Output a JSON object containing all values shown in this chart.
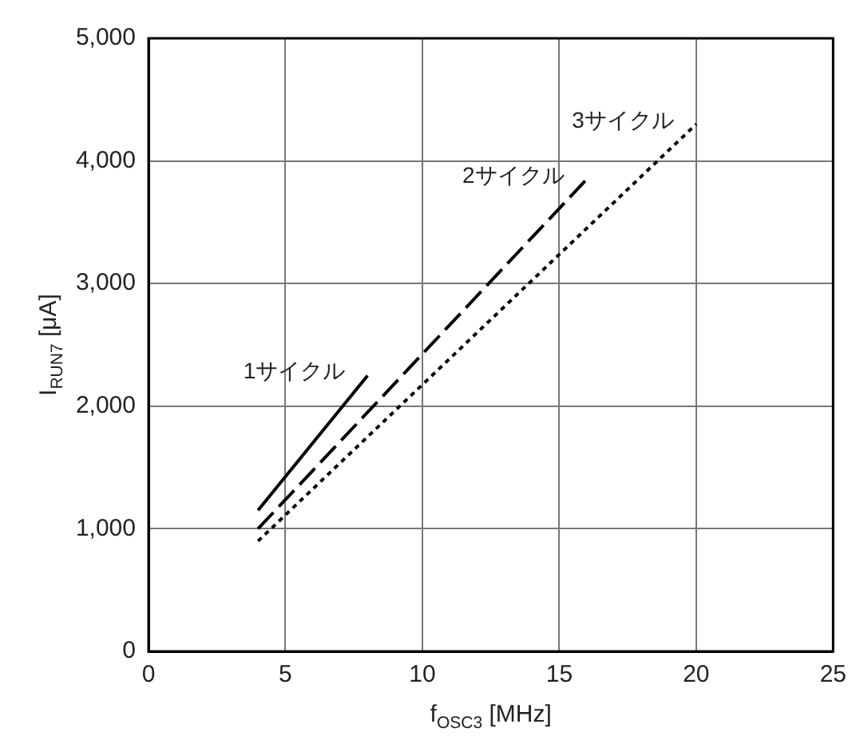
{
  "chart_data": {
    "type": "line",
    "xlabel": "f$_{OSC3}$ [MHz]",
    "ylabel": "I$_{RUN7}$ [μA]",
    "xlim": [
      0,
      25
    ],
    "xticks": [
      0,
      5,
      10,
      15,
      20,
      25
    ],
    "ylim": [
      0,
      5000
    ],
    "yticks": [
      0,
      {
        "value": 1000,
        "label": "1,000"
      },
      {
        "value": 2000,
        "label": "2,000"
      },
      {
        "value": 3000,
        "label": "3,000"
      },
      {
        "value": 4000,
        "label": "4,000"
      },
      {
        "value": 5000,
        "label": "5,000"
      }
    ],
    "grid": true,
    "legend": false,
    "marker": "none",
    "series": [
      {
        "name": "1サイクル",
        "color": "#000000",
        "line_style": "solid",
        "x": [
          4,
          8
        ],
        "values": [
          1150,
          2250
        ]
      },
      {
        "name": "2サイクル",
        "color": "#000000",
        "line_style": "dashed",
        "x": [
          4,
          16
        ],
        "values": [
          1000,
          3850
        ]
      },
      {
        "name": "3サイクル",
        "color": "#000000",
        "line_style": "dotted",
        "x": [
          4,
          20
        ],
        "values": [
          900,
          4300
        ]
      }
    ]
  }
}
